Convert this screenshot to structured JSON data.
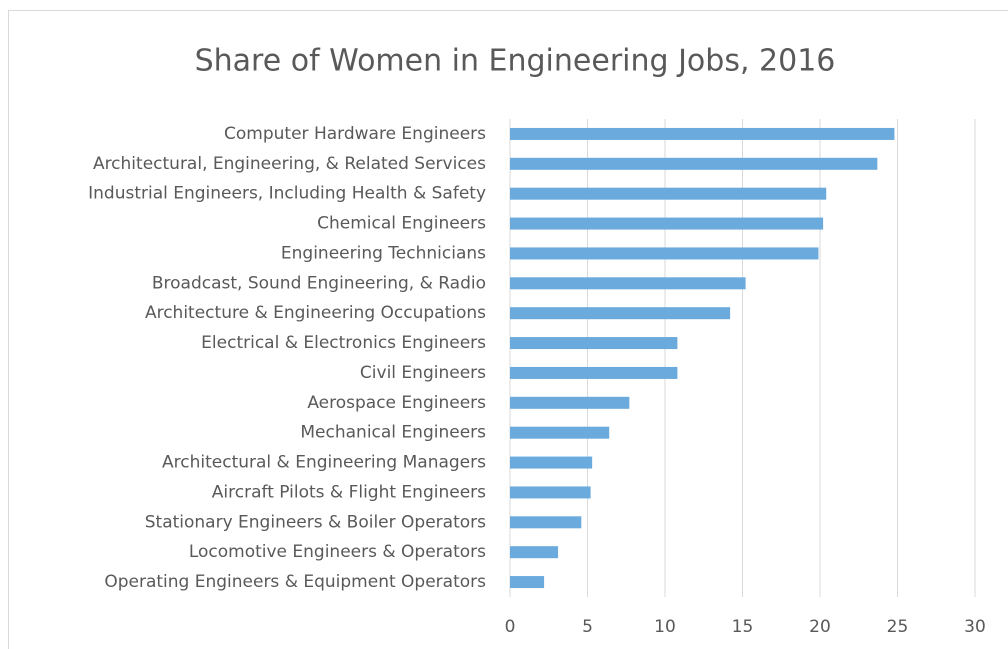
{
  "chart_data": {
    "type": "barh",
    "title": "Share of Women in Engineering Jobs, 2016",
    "categories": [
      "Computer Hardware Engineers",
      "Architectural, Engineering, & Related Services",
      "Industrial Engineers, Including Health & Safety",
      "Chemical Engineers",
      "Engineering Technicians",
      "Broadcast, Sound Engineering, & Radio",
      "Architecture & Engineering Occupations",
      "Electrical & Electronics Engineers",
      "Civil Engineers",
      "Aerospace Engineers",
      "Mechanical Engineers",
      "Architectural & Engineering Managers",
      "Aircraft Pilots & Flight Engineers",
      "Stationary Engineers & Boiler Operators",
      "Locomotive Engineers & Operators",
      "Operating Engineers & Equipment Operators"
    ],
    "values": [
      24.8,
      23.7,
      20.4,
      20.2,
      19.9,
      15.2,
      14.2,
      10.8,
      10.8,
      7.7,
      6.4,
      5.3,
      5.2,
      4.6,
      3.1,
      2.2
    ],
    "color": "#6aaadc",
    "xlim": [
      0,
      30
    ],
    "xticks": [
      0,
      5,
      10,
      15,
      20,
      25,
      30
    ],
    "grid": true
  }
}
